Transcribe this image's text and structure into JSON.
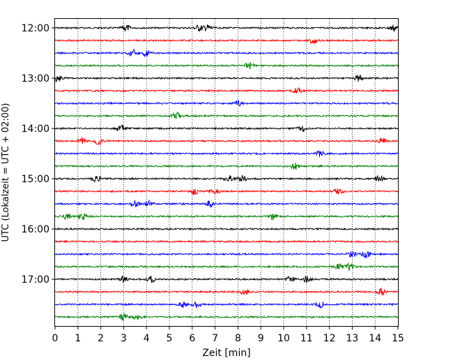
{
  "chart_data": {
    "type": "line",
    "title": "",
    "xlabel": "Zeit  [min]",
    "ylabel": "UTC (Lokalzeit = UTC + 02:00)",
    "xlim": [
      0,
      15
    ],
    "x_ticks": [
      "0",
      "1",
      "2",
      "3",
      "4",
      "5",
      "6",
      "7",
      "8",
      "9",
      "10",
      "11",
      "12",
      "13",
      "14",
      "15"
    ],
    "y_ticks": [
      "12:00",
      "13:00",
      "14:00",
      "15:00",
      "16:00",
      "17:00"
    ],
    "grid": "vertical-dotted",
    "trace_interval_min": 15,
    "trace_colors": [
      "#000000",
      "#ff0000",
      "#0000ff",
      "#008000"
    ],
    "traces": [
      {
        "start": "12:00",
        "color": "#000000",
        "events": [
          3.1,
          6.3,
          6.7,
          14.8
        ]
      },
      {
        "start": "12:15",
        "color": "#ff0000",
        "events": [
          11.3
        ]
      },
      {
        "start": "12:30",
        "color": "#0000ff",
        "events": [
          3.4,
          4.0
        ]
      },
      {
        "start": "12:45",
        "color": "#008000",
        "events": [
          8.5
        ]
      },
      {
        "start": "13:00",
        "color": "#000000",
        "events": [
          0.1,
          13.3
        ]
      },
      {
        "start": "13:15",
        "color": "#ff0000",
        "events": [
          10.6
        ]
      },
      {
        "start": "13:30",
        "color": "#0000ff",
        "events": [
          8.0
        ]
      },
      {
        "start": "13:45",
        "color": "#008000",
        "events": [
          5.3
        ]
      },
      {
        "start": "14:00",
        "color": "#000000",
        "events": [
          2.9,
          10.8
        ]
      },
      {
        "start": "14:15",
        "color": "#ff0000",
        "events": [
          1.2,
          1.9,
          14.3
        ]
      },
      {
        "start": "14:30",
        "color": "#0000ff",
        "events": [
          11.6
        ]
      },
      {
        "start": "14:45",
        "color": "#008000",
        "events": [
          10.5
        ]
      },
      {
        "start": "15:00",
        "color": "#000000",
        "events": [
          1.8,
          7.6,
          8.2,
          14.2
        ]
      },
      {
        "start": "15:15",
        "color": "#ff0000",
        "events": [
          6.1,
          7.0,
          12.4
        ]
      },
      {
        "start": "15:30",
        "color": "#0000ff",
        "events": [
          3.5,
          4.1,
          6.8
        ]
      },
      {
        "start": "15:45",
        "color": "#008000",
        "events": [
          0.5,
          1.2,
          9.5
        ]
      },
      {
        "start": "16:00",
        "color": "#000000",
        "events": []
      },
      {
        "start": "16:15",
        "color": "#ff0000",
        "events": []
      },
      {
        "start": "16:30",
        "color": "#0000ff",
        "events": [
          13.0,
          13.6
        ]
      },
      {
        "start": "16:45",
        "color": "#008000",
        "events": [
          12.4,
          12.9
        ]
      },
      {
        "start": "17:00",
        "color": "#000000",
        "events": [
          3.0,
          4.2,
          10.3,
          11.0
        ]
      },
      {
        "start": "17:15",
        "color": "#ff0000",
        "events": [
          8.3,
          14.3
        ]
      },
      {
        "start": "17:30",
        "color": "#0000ff",
        "events": [
          5.6,
          6.2,
          11.6
        ]
      },
      {
        "start": "17:45",
        "color": "#008000",
        "events": [
          3.0,
          3.6
        ]
      }
    ]
  }
}
